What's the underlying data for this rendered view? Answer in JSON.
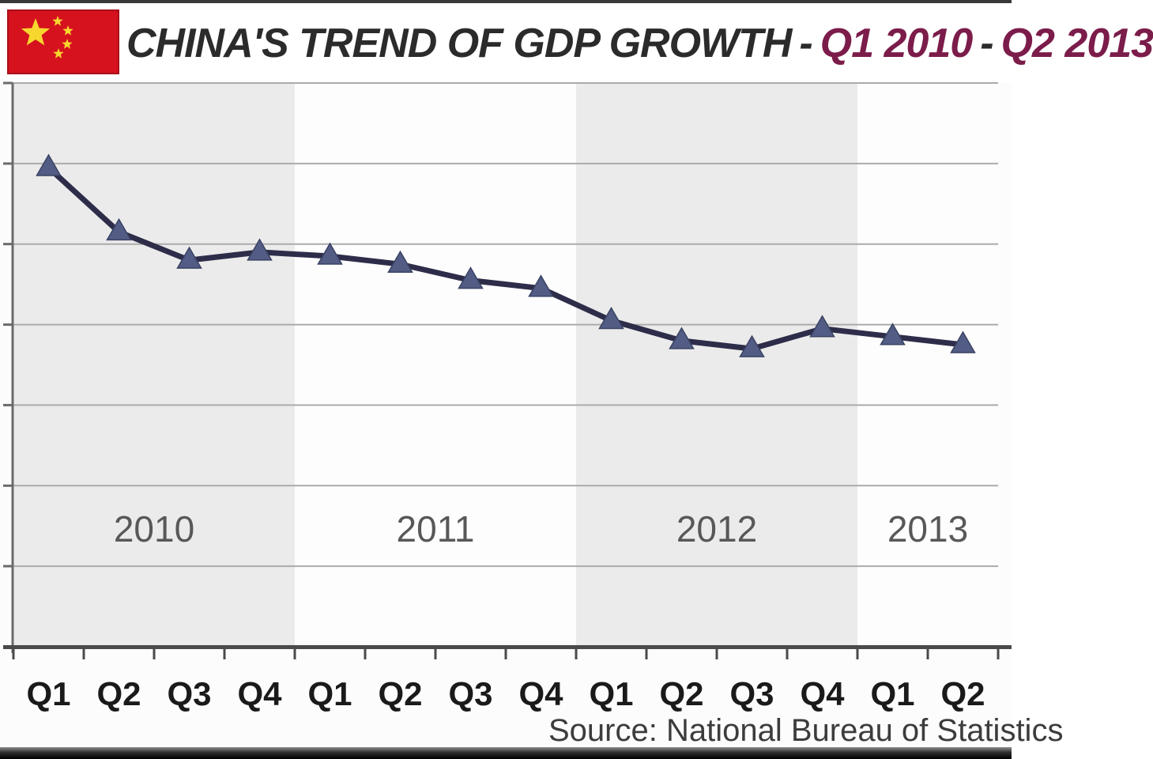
{
  "colors": {
    "title_black": "#2b2b2b",
    "title_maroon": "#7b1c4a",
    "flag_red": "#d6121f",
    "flag_border": "#a81019",
    "star_yellow": "#f7d72e",
    "line": "#2d2d4a",
    "marker": "#535c84",
    "marker_edge": "#3a4263",
    "grid": "#ababab",
    "axis_y": "#6b6b6b",
    "axis_x": "#4a4a4a",
    "band_gray": "#ebebeb",
    "band_white": "#fdfdfd"
  },
  "header": {
    "title_main": "CHINA'S TREND OF GDP GROWTH",
    "separator": "-",
    "range_start": "Q1 2010",
    "range_end": "Q2 2013"
  },
  "footer": {
    "source": "Source: National Bureau of Statistics"
  },
  "chart_data": {
    "type": "line",
    "title": "CHINA'S TREND OF GDP GROWTH - Q1 2010 - Q2 2013",
    "categories": [
      "Q1",
      "Q2",
      "Q3",
      "Q4",
      "Q1",
      "Q2",
      "Q3",
      "Q4",
      "Q1",
      "Q2",
      "Q3",
      "Q4",
      "Q1",
      "Q2"
    ],
    "year_bands": [
      {
        "label": "2010",
        "quarters": 4
      },
      {
        "label": "2011",
        "quarters": 4
      },
      {
        "label": "2012",
        "quarters": 4
      },
      {
        "label": "2013",
        "quarters": 2
      }
    ],
    "series": [
      {
        "name": "GDP growth",
        "values": [
          11.9,
          10.3,
          9.6,
          9.8,
          9.7,
          9.5,
          9.1,
          8.9,
          8.1,
          7.6,
          7.4,
          7.9,
          7.7,
          7.5
        ]
      }
    ],
    "ylim": [
      0,
      14
    ],
    "y_grid_step": 2,
    "y_tick_labels_visible": false,
    "grid": "horizontal",
    "legend": "none",
    "marker": "triangle-up",
    "xlabel": "",
    "ylabel": "",
    "source": "Source: National Bureau of Statistics"
  }
}
